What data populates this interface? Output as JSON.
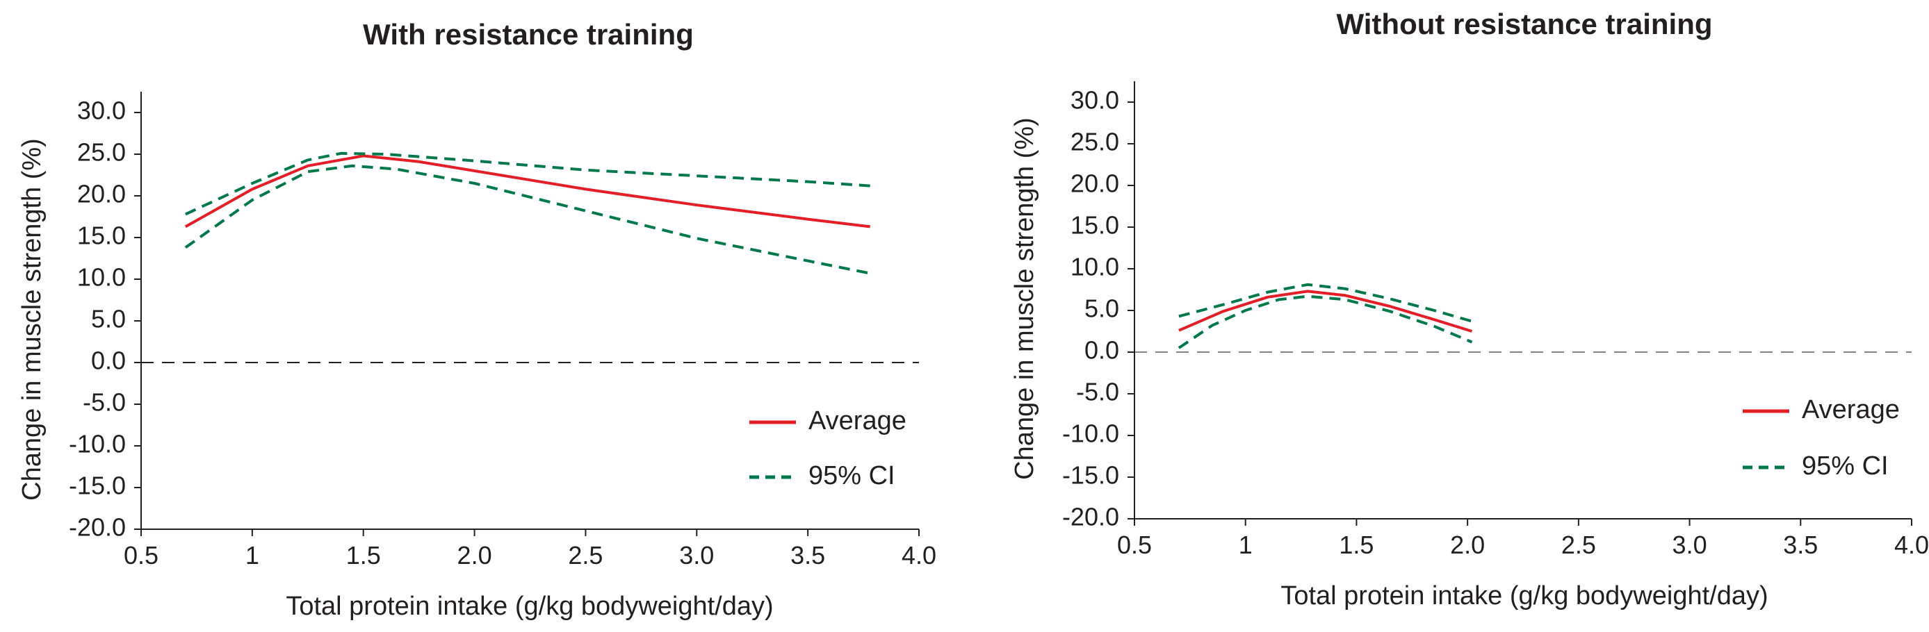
{
  "colors": {
    "average": "#e31e26",
    "ci": "#00794a",
    "axis": "#231f20",
    "zero_line": "#231f20"
  },
  "chart_data": [
    {
      "type": "line",
      "title": "With resistance training",
      "xlabel": "Total protein intake (g/kg bodyweight/day)",
      "ylabel": "Change in muscle strength (%)",
      "xlim": [
        0.5,
        4.0
      ],
      "ylim": [
        -20.0,
        30.0
      ],
      "xticks": [
        "0.5",
        "1",
        "1.5",
        "2.0",
        "2.5",
        "3.0",
        "3.5",
        "4.0"
      ],
      "xtick_values": [
        0.5,
        1.0,
        1.5,
        2.0,
        2.5,
        3.0,
        3.5,
        4.0
      ],
      "yticks": [
        "30.0",
        "25.0",
        "20.0",
        "15.0",
        "10.0",
        "5.0",
        "0.0",
        "-5.0",
        "-10.0",
        "-15.0",
        "-20.0"
      ],
      "ytick_values": [
        30,
        25,
        20,
        15,
        10,
        5,
        0,
        -5,
        -10,
        -15,
        -20
      ],
      "legend": {
        "position": "bottom-right",
        "entries": [
          "Average",
          "95% CI"
        ]
      },
      "series": [
        {
          "name": "Average",
          "style": "solid",
          "x": [
            0.7,
            1.0,
            1.25,
            1.5,
            1.75,
            2.0,
            2.5,
            3.0,
            3.5,
            3.78
          ],
          "y": [
            16.3,
            20.8,
            23.6,
            24.8,
            24.1,
            23.0,
            20.8,
            18.9,
            17.2,
            16.3
          ]
        },
        {
          "name": "95% CI",
          "style": "dashed",
          "x": [
            0.7,
            1.0,
            1.25,
            1.4,
            1.6,
            2.0,
            2.5,
            3.0,
            3.5,
            3.78
          ],
          "y": [
            17.8,
            21.5,
            24.3,
            25.1,
            25.0,
            24.2,
            23.1,
            22.4,
            21.7,
            21.2
          ]
        },
        {
          "name": "95% CI",
          "style": "dashed",
          "x": [
            0.7,
            1.0,
            1.25,
            1.45,
            1.65,
            2.0,
            2.5,
            3.0,
            3.5,
            3.78
          ],
          "y": [
            13.8,
            19.5,
            22.9,
            23.6,
            23.2,
            21.5,
            18.2,
            14.9,
            12.2,
            10.7
          ]
        }
      ]
    },
    {
      "type": "line",
      "title": "Without resistance training",
      "xlabel": "Total protein intake (g/kg bodyweight/day)",
      "ylabel": "Change in muscle strength (%)",
      "xlim": [
        0.5,
        4.0
      ],
      "ylim": [
        -20.0,
        30.0
      ],
      "xticks": [
        "0.5",
        "1",
        "1.5",
        "2.0",
        "2.5",
        "3.0",
        "3.5",
        "4.0"
      ],
      "xtick_values": [
        0.5,
        1.0,
        1.5,
        2.0,
        2.5,
        3.0,
        3.5,
        4.0
      ],
      "yticks": [
        "30.0",
        "25.0",
        "20.0",
        "15.0",
        "10.0",
        "5.0",
        "0.0",
        "-5.0",
        "-10.0",
        "-15.0",
        "-20.0"
      ],
      "ytick_values": [
        30,
        25,
        20,
        15,
        10,
        5,
        0,
        -5,
        -10,
        -15,
        -20
      ],
      "legend": {
        "position": "bottom-right",
        "entries": [
          "Average",
          "95% CI"
        ]
      },
      "series": [
        {
          "name": "Average",
          "style": "solid",
          "x": [
            0.7,
            0.9,
            1.1,
            1.28,
            1.45,
            1.65,
            1.85,
            2.02
          ],
          "y": [
            2.6,
            4.9,
            6.6,
            7.3,
            6.8,
            5.5,
            3.9,
            2.5
          ]
        },
        {
          "name": "95% CI",
          "style": "dashed",
          "x": [
            0.7,
            0.9,
            1.1,
            1.28,
            1.45,
            1.65,
            1.85,
            2.02
          ],
          "y": [
            4.3,
            5.7,
            7.2,
            8.1,
            7.6,
            6.4,
            5.0,
            3.7
          ]
        },
        {
          "name": "95% CI",
          "style": "dashed",
          "x": [
            0.7,
            0.85,
            1.0,
            1.15,
            1.28,
            1.45,
            1.65,
            1.85,
            2.02
          ],
          "y": [
            0.5,
            3.2,
            5.0,
            6.3,
            6.7,
            6.3,
            4.9,
            3.1,
            1.2
          ]
        }
      ]
    }
  ]
}
